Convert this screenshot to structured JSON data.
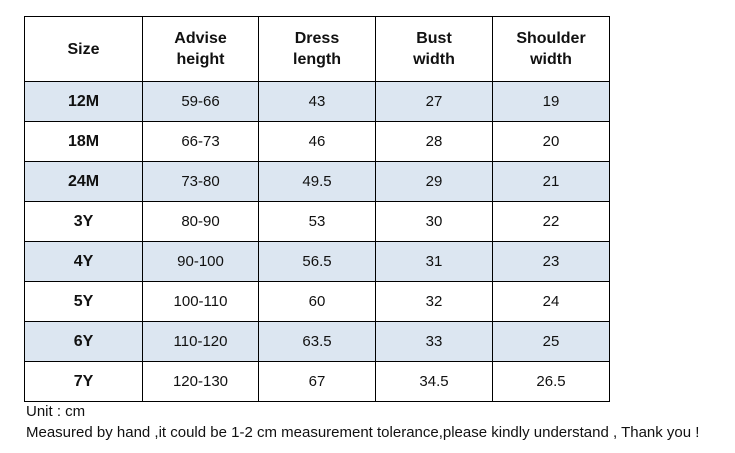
{
  "table": {
    "headers": [
      [
        "Size"
      ],
      [
        "Advise",
        "height"
      ],
      [
        "Dress",
        "length"
      ],
      [
        "Bust",
        "width"
      ],
      [
        "Shoulder",
        "width"
      ]
    ],
    "rows": [
      [
        "12M",
        "59-66",
        "43",
        "27",
        "19"
      ],
      [
        "18M",
        "66-73",
        "46",
        "28",
        "20"
      ],
      [
        "24M",
        "73-80",
        "49.5",
        "29",
        "21"
      ],
      [
        "3Y",
        "80-90",
        "53",
        "30",
        "22"
      ],
      [
        "4Y",
        "90-100",
        "56.5",
        "31",
        "23"
      ],
      [
        "5Y",
        "100-110",
        "60",
        "32",
        "24"
      ],
      [
        "6Y",
        "110-120",
        "63.5",
        "33",
        "25"
      ],
      [
        "7Y",
        "120-130",
        "67",
        "34.5",
        "26.5"
      ]
    ],
    "shaded_row_color": "#dce6f1",
    "border_color": "#000000"
  },
  "notes": {
    "unit": "Unit : cm",
    "tolerance": "Measured by hand ,it could be 1-2 cm measurement tolerance,please kindly understand , Thank you !"
  }
}
